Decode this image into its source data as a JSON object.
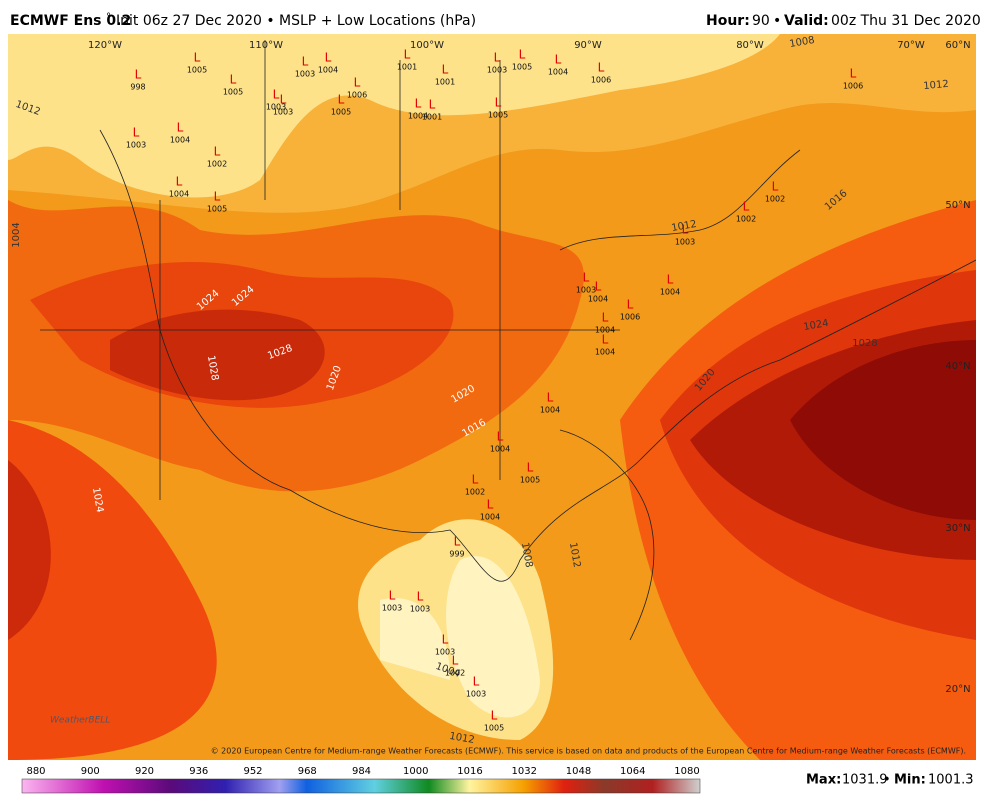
{
  "header": {
    "model": "ECMWF Ens 0.2",
    "degree": "°",
    "init": "Init 06z 27 Dec 2020 • MSLP + Low Locations (hPa)",
    "hour_label": "Hour:",
    "hour": 90,
    "sep": "•",
    "valid_label": "Valid:",
    "valid": "00z Thu 31 Dec 2020"
  },
  "lon_labels": [
    "120°W",
    "110°W",
    "100°W",
    "90°W",
    "80°W",
    "70°W",
    "60°N"
  ],
  "lat_labels": [
    "50°N",
    "40°N",
    "30°N",
    "20°N"
  ],
  "contour_labels": [
    1012,
    1024,
    1024,
    1028,
    1028,
    1020,
    1020,
    1016,
    1024,
    1008,
    1012,
    1012,
    1020,
    1024,
    1028,
    1016,
    1012,
    1008,
    1004,
    1012,
    1004
  ],
  "low_symbol": "L",
  "lows": [
    998,
    1005,
    1005,
    1003,
    1003,
    1003,
    1004,
    1006,
    1005,
    1001,
    1001,
    1001,
    1004,
    1003,
    1005,
    1004,
    1006,
    1005,
    1006,
    1003,
    1004,
    1002,
    1004,
    1005,
    1002,
    1002,
    1003,
    1003,
    1004,
    1004,
    1004,
    1006,
    1004,
    1004,
    1004,
    1002,
    1004,
    1005,
    999,
    1003,
    1003,
    1003,
    1002,
    1003,
    1005
  ],
  "copyright": "© 2020 European Centre for Medium-range Weather Forecasts (ECMWF). This service is based on data and products of the European Centre for Medium-range Weather Forecasts (ECMWF).",
  "logo": "WeatherBELL",
  "colorbar": {
    "ticks": [
      880,
      900,
      920,
      936,
      952,
      968,
      984,
      1000,
      1016,
      1032,
      1048,
      1064,
      1080
    ]
  },
  "footer": {
    "max_label": "Max:",
    "max": 1031.9,
    "sep": "•",
    "min_label": "Min:",
    "min": 1001.3
  }
}
